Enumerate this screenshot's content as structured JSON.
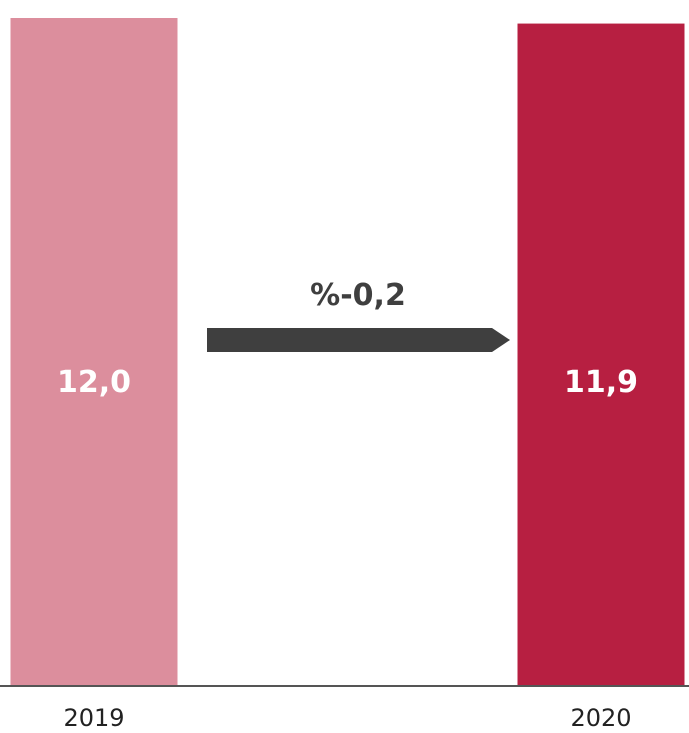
{
  "chart_data": {
    "type": "bar",
    "categories": [
      "2019",
      "2020"
    ],
    "values": [
      12.0,
      11.9
    ],
    "value_labels": [
      "12,0",
      "11,9"
    ],
    "colors": [
      "#dc8e9d",
      "#b71f41"
    ],
    "ylim": [
      0,
      12.0
    ],
    "grid": false,
    "legend": "none",
    "annotation": {
      "text": "%-0,2",
      "arrow_color": "#3f3f3f",
      "direction": "right"
    }
  }
}
